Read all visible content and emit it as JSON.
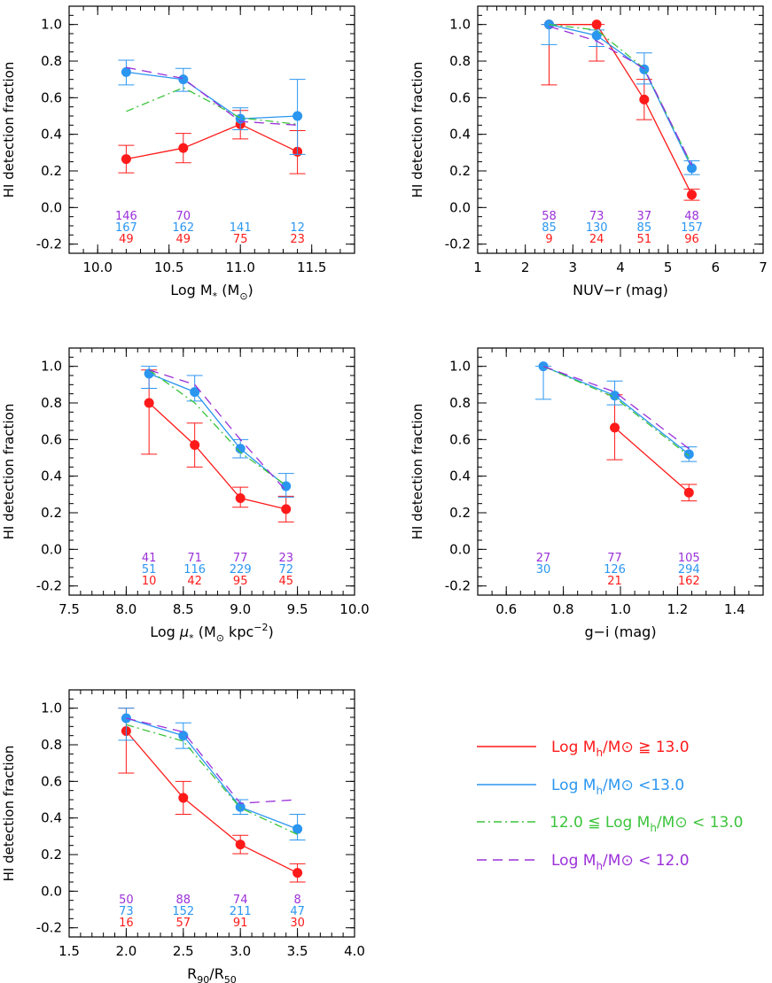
{
  "colors": {
    "axis": "#000000",
    "high": "#ff1a1a",
    "low": "#2b96f0",
    "mid": "#3cc43c",
    "lowest": "#9b30d9"
  },
  "legend": {
    "entries": [
      {
        "id": "high",
        "prefix": "Log M",
        "sub": "h",
        "suffix": "/M⊙ ≧ 13.0",
        "style": "solid"
      },
      {
        "id": "low",
        "prefix": "Log M",
        "sub": "h",
        "suffix": "/M⊙ <13.0",
        "style": "solid"
      },
      {
        "id": "mid",
        "prefix": "12.0 ≦ Log M",
        "sub": "h",
        "suffix": "/M⊙ < 13.0",
        "style": "dashdot"
      },
      {
        "id": "lowest",
        "prefix": "Log M",
        "sub": "h",
        "suffix": "/M⊙ < 12.0",
        "style": "dashed"
      }
    ]
  },
  "chart_data": [
    {
      "id": "p1",
      "type": "line",
      "title": "",
      "ylabel": "HI detection fraction",
      "xlabel_parts": [
        {
          "t": "Log M"
        },
        {
          "t": "*",
          "sub": true
        },
        {
          "t": " (M"
        },
        {
          "t": "⊙",
          "sub": true
        },
        {
          "t": ")"
        }
      ],
      "xlim": [
        9.8,
        11.8
      ],
      "ylim": [
        -0.25,
        1.1
      ],
      "xticks": [
        10.0,
        10.5,
        11.0,
        11.5
      ],
      "xtick_labels": [
        "10.0",
        "10.5",
        "11.0",
        "11.5"
      ],
      "yticks": [
        -0.2,
        0.0,
        0.2,
        0.4,
        0.6,
        0.8,
        1.0
      ],
      "ytick_labels": [
        "-0.2",
        "0.0",
        "0.2",
        "0.4",
        "0.6",
        "0.8",
        "1.0"
      ],
      "x_minor": 0.1,
      "series": [
        {
          "name": "high",
          "x": [
            10.2,
            10.6,
            11.0,
            11.4
          ],
          "values": [
            0.265,
            0.325,
            0.455,
            0.305
          ],
          "err_low": [
            0.075,
            0.08,
            0.08,
            0.12
          ],
          "err_high": [
            0.075,
            0.08,
            0.075,
            0.115
          ]
        },
        {
          "name": "low",
          "x": [
            10.2,
            10.6,
            11.0,
            11.4
          ],
          "values": [
            0.74,
            0.7,
            0.485,
            0.5
          ],
          "err_low": [
            0.07,
            0.065,
            0.06,
            0.21
          ],
          "err_high": [
            0.065,
            0.06,
            0.06,
            0.2
          ]
        },
        {
          "name": "mid",
          "x": [
            10.2,
            10.6,
            11.0,
            11.4
          ],
          "values": [
            0.525,
            0.655,
            0.49,
            0.455
          ]
        },
        {
          "name": "lowest",
          "x": [
            10.2,
            10.6,
            11.0,
            11.4
          ],
          "values": [
            0.765,
            0.705,
            0.47,
            0.45
          ]
        }
      ],
      "counts": {
        "x": [
          10.2,
          10.6,
          11.0,
          11.4
        ],
        "lowest": [
          "146",
          "70",
          "",
          ""
        ],
        "low": [
          "167",
          "162",
          "141",
          "12"
        ],
        "high": [
          "49",
          "49",
          "75",
          "23"
        ]
      }
    },
    {
      "id": "p2",
      "type": "line",
      "title": "",
      "ylabel": "HI detection fraction",
      "xlabel_parts": [
        {
          "t": "NUV−r (mag)"
        }
      ],
      "xlim": [
        1,
        7
      ],
      "ylim": [
        -0.25,
        1.1
      ],
      "xticks": [
        1,
        2,
        3,
        4,
        5,
        6,
        7
      ],
      "xtick_labels": [
        "1",
        "2",
        "3",
        "4",
        "5",
        "6",
        "7"
      ],
      "yticks": [
        -0.2,
        0.0,
        0.2,
        0.4,
        0.6,
        0.8,
        1.0
      ],
      "ytick_labels": [
        "-0.2",
        "0.0",
        "0.2",
        "0.4",
        "0.6",
        "0.8",
        "1.0"
      ],
      "x_minor": 0.2,
      "series": [
        {
          "name": "high",
          "x": [
            2.5,
            3.5,
            4.5,
            5.5
          ],
          "values": [
            1.0,
            1.0,
            0.59,
            0.07
          ],
          "err_low": [
            0.33,
            0.2,
            0.11,
            0.03
          ],
          "err_high": [
            0.0,
            0.0,
            0.11,
            0.03
          ]
        },
        {
          "name": "low",
          "x": [
            2.5,
            3.5,
            4.5,
            5.5
          ],
          "values": [
            1.0,
            0.94,
            0.755,
            0.215
          ],
          "err_low": [
            0.11,
            0.06,
            0.08,
            0.035
          ],
          "err_high": [
            0.0,
            0.03,
            0.09,
            0.04
          ]
        },
        {
          "name": "mid",
          "x": [
            2.5,
            3.5,
            4.5,
            5.5
          ],
          "values": [
            1.0,
            0.97,
            0.76,
            0.23
          ]
        },
        {
          "name": "lowest",
          "x": [
            2.5,
            3.5,
            4.5,
            5.5
          ],
          "values": [
            0.99,
            0.91,
            0.76,
            0.23
          ]
        }
      ],
      "counts": {
        "x": [
          2.5,
          3.5,
          4.5,
          5.5
        ],
        "lowest": [
          "58",
          "73",
          "37",
          "48"
        ],
        "low": [
          "85",
          "130",
          "85",
          "157"
        ],
        "high": [
          "9",
          "24",
          "51",
          "96"
        ]
      }
    },
    {
      "id": "p3",
      "type": "line",
      "title": "",
      "ylabel": "HI detection fraction",
      "xlabel_parts": [
        {
          "t": "Log "
        },
        {
          "t": "μ",
          "italic": true
        },
        {
          "t": "*",
          "sub": true
        },
        {
          "t": " (M"
        },
        {
          "t": "⊙",
          "sub": true
        },
        {
          "t": " kpc"
        },
        {
          "t": "−2",
          "sup": true
        },
        {
          "t": ")"
        }
      ],
      "xlim": [
        7.5,
        10.0
      ],
      "ylim": [
        -0.25,
        1.1
      ],
      "xticks": [
        7.5,
        8.0,
        8.5,
        9.0,
        9.5,
        10.0
      ],
      "xtick_labels": [
        "7.5",
        "8.0",
        "8.5",
        "9.0",
        "9.5",
        "10.0"
      ],
      "yticks": [
        -0.2,
        0.0,
        0.2,
        0.4,
        0.6,
        0.8,
        1.0
      ],
      "ytick_labels": [
        "-0.2",
        "0.0",
        "0.2",
        "0.4",
        "0.6",
        "0.8",
        "1.0"
      ],
      "x_minor": 0.1,
      "series": [
        {
          "name": "high",
          "x": [
            8.2,
            8.6,
            9.0,
            9.4
          ],
          "values": [
            0.8,
            0.57,
            0.28,
            0.22
          ],
          "err_low": [
            0.28,
            0.12,
            0.05,
            0.07
          ],
          "err_high": [
            0.18,
            0.12,
            0.06,
            0.07
          ]
        },
        {
          "name": "low",
          "x": [
            8.2,
            8.6,
            9.0,
            9.4
          ],
          "values": [
            0.96,
            0.86,
            0.55,
            0.345
          ],
          "err_low": [
            0.08,
            0.05,
            0.05,
            0.06
          ],
          "err_high": [
            0.04,
            0.09,
            0.05,
            0.07
          ]
        },
        {
          "name": "mid",
          "x": [
            8.2,
            8.6,
            9.0,
            9.4
          ],
          "values": [
            0.98,
            0.8,
            0.53,
            0.35
          ]
        },
        {
          "name": "lowest",
          "x": [
            8.2,
            8.6,
            9.0,
            9.4
          ],
          "values": [
            0.98,
            0.9,
            0.6,
            0.32
          ]
        }
      ],
      "counts": {
        "x": [
          8.2,
          8.6,
          9.0,
          9.4
        ],
        "lowest": [
          "41",
          "71",
          "77",
          "23"
        ],
        "low": [
          "51",
          "116",
          "229",
          "72"
        ],
        "high": [
          "10",
          "42",
          "95",
          "45"
        ]
      }
    },
    {
      "id": "p4",
      "type": "line",
      "title": "",
      "ylabel": "HI detection fraction",
      "xlabel_parts": [
        {
          "t": "g−i (mag)"
        }
      ],
      "xlim": [
        0.5,
        1.5
      ],
      "ylim": [
        -0.25,
        1.1
      ],
      "xticks": [
        0.6,
        0.8,
        1.0,
        1.2,
        1.4
      ],
      "xtick_labels": [
        "0.6",
        "0.8",
        "1.0",
        "1.2",
        "1.4"
      ],
      "yticks": [
        -0.2,
        0.0,
        0.2,
        0.4,
        0.6,
        0.8,
        1.0
      ],
      "ytick_labels": [
        "-0.2",
        "0.0",
        "0.2",
        "0.4",
        "0.6",
        "0.8",
        "1.0"
      ],
      "x_minor": 0.05,
      "series": [
        {
          "name": "high",
          "x": [
            0.98,
            1.24
          ],
          "values": [
            0.665,
            0.31
          ],
          "err_low": [
            0.175,
            0.045
          ],
          "err_high": [
            0.18,
            0.045
          ]
        },
        {
          "name": "low",
          "x": [
            0.73,
            0.98,
            1.24
          ],
          "values": [
            1.0,
            0.84,
            0.52
          ],
          "err_low": [
            0.18,
            0.05,
            0.04
          ],
          "err_high": [
            0.0,
            0.08,
            0.04
          ]
        },
        {
          "name": "mid",
          "x": [
            0.73,
            0.98,
            1.24
          ],
          "values": [
            1.0,
            0.83,
            0.51
          ]
        },
        {
          "name": "lowest",
          "x": [
            0.73,
            0.98,
            1.24
          ],
          "values": [
            1.0,
            0.86,
            0.55
          ]
        }
      ],
      "counts": {
        "x": [
          0.73,
          0.98,
          1.24
        ],
        "lowest": [
          "27",
          "77",
          "105"
        ],
        "low": [
          "30",
          "126",
          "294"
        ],
        "high": [
          "",
          "21",
          "162"
        ]
      }
    },
    {
      "id": "p5",
      "type": "line",
      "title": "",
      "ylabel": "HI detection fraction",
      "xlabel_parts": [
        {
          "t": "R"
        },
        {
          "t": "90",
          "sub": true
        },
        {
          "t": "/R"
        },
        {
          "t": "50",
          "sub": true
        }
      ],
      "xlim": [
        1.5,
        4.0
      ],
      "ylim": [
        -0.25,
        1.1
      ],
      "xticks": [
        1.5,
        2.0,
        2.5,
        3.0,
        3.5,
        4.0
      ],
      "xtick_labels": [
        "1.5",
        "2.0",
        "2.5",
        "3.0",
        "3.5",
        "4.0"
      ],
      "yticks": [
        -0.2,
        0.0,
        0.2,
        0.4,
        0.6,
        0.8,
        1.0
      ],
      "ytick_labels": [
        "-0.2",
        "0.0",
        "0.2",
        "0.4",
        "0.6",
        "0.8",
        "1.0"
      ],
      "x_minor": 0.1,
      "series": [
        {
          "name": "high",
          "x": [
            2.0,
            2.5,
            3.0,
            3.5
          ],
          "values": [
            0.875,
            0.51,
            0.255,
            0.1
          ],
          "err_low": [
            0.23,
            0.09,
            0.05,
            0.05
          ],
          "err_high": [
            0.125,
            0.09,
            0.05,
            0.05
          ]
        },
        {
          "name": "low",
          "x": [
            2.0,
            2.5,
            3.0,
            3.5
          ],
          "values": [
            0.945,
            0.85,
            0.46,
            0.34
          ],
          "err_low": [
            0.12,
            0.07,
            0.04,
            0.06
          ],
          "err_high": [
            0.055,
            0.07,
            0.04,
            0.08
          ]
        },
        {
          "name": "mid",
          "x": [
            2.0,
            2.5,
            3.0,
            3.5
          ],
          "values": [
            0.91,
            0.82,
            0.455,
            0.31
          ]
        },
        {
          "name": "lowest",
          "x": [
            2.0,
            2.5,
            3.0,
            3.5
          ],
          "values": [
            0.945,
            0.87,
            0.48,
            0.5
          ]
        }
      ],
      "counts": {
        "x": [
          2.0,
          2.5,
          3.0,
          3.5
        ],
        "lowest": [
          "50",
          "88",
          "74",
          "8"
        ],
        "low": [
          "73",
          "152",
          "211",
          "47"
        ],
        "high": [
          "16",
          "57",
          "91",
          "30"
        ]
      }
    }
  ]
}
